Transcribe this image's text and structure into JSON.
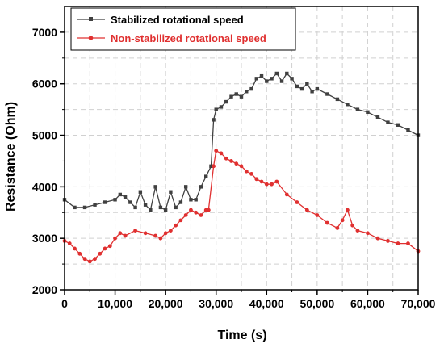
{
  "chart_data": {
    "type": "line",
    "xlabel": "Time (s)",
    "ylabel": "Resistance (Ohm)",
    "xlim": [
      0,
      70000
    ],
    "ylim": [
      2000,
      7500
    ],
    "x_ticks": [
      0,
      10000,
      20000,
      30000,
      40000,
      50000,
      60000,
      70000
    ],
    "x_tick_labels": [
      "0",
      "10,000",
      "20,000",
      "30,000",
      "40,000",
      "50,000",
      "60,000",
      "70,000"
    ],
    "y_ticks": [
      2000,
      3000,
      4000,
      5000,
      6000,
      7000
    ],
    "y_tick_labels": [
      "2000",
      "3000",
      "4000",
      "5000",
      "6000",
      "7000"
    ],
    "grid": true,
    "legend_position": "top-left",
    "series": [
      {
        "name": "Stabilized rotational speed",
        "color": "#404040",
        "marker": "square",
        "x": [
          0,
          2000,
          4000,
          6000,
          8000,
          10000,
          11000,
          12000,
          13000,
          14000,
          15000,
          16000,
          17000,
          18000,
          19000,
          20000,
          21000,
          22000,
          23000,
          24000,
          25000,
          26000,
          27000,
          28000,
          29000,
          29500,
          30000,
          31000,
          32000,
          33000,
          34000,
          35000,
          36000,
          37000,
          38000,
          39000,
          40000,
          41000,
          42000,
          43000,
          44000,
          45000,
          46000,
          47000,
          48000,
          49000,
          50000,
          52000,
          54000,
          56000,
          58000,
          60000,
          62000,
          64000,
          66000,
          68000,
          70000
        ],
        "y": [
          3750,
          3600,
          3600,
          3650,
          3700,
          3750,
          3850,
          3800,
          3700,
          3600,
          3900,
          3650,
          3550,
          4000,
          3600,
          3550,
          3900,
          3600,
          3700,
          4000,
          3750,
          3750,
          4000,
          4200,
          4400,
          5300,
          5500,
          5550,
          5650,
          5750,
          5800,
          5750,
          5850,
          5900,
          6100,
          6150,
          6050,
          6100,
          6200,
          6050,
          6200,
          6100,
          5950,
          5900,
          6000,
          5850,
          5900,
          5800,
          5700,
          5600,
          5500,
          5450,
          5350,
          5250,
          5200,
          5100,
          5000
        ]
      },
      {
        "name": "Non-stabilized rotational speed",
        "color": "#e03030",
        "marker": "circle",
        "x": [
          0,
          1000,
          2000,
          3000,
          4000,
          5000,
          6000,
          7000,
          8000,
          9000,
          10000,
          11000,
          12000,
          14000,
          16000,
          18000,
          19000,
          20000,
          21000,
          22000,
          23000,
          24000,
          25000,
          26000,
          27000,
          28000,
          28500,
          29500,
          30000,
          31000,
          32000,
          33000,
          34000,
          35000,
          36000,
          37000,
          38000,
          39000,
          40000,
          41000,
          42000,
          44000,
          46000,
          48000,
          50000,
          52000,
          54000,
          55000,
          56000,
          57000,
          58000,
          60000,
          62000,
          64000,
          66000,
          68000,
          70000
        ],
        "y": [
          2950,
          2900,
          2800,
          2700,
          2600,
          2550,
          2600,
          2700,
          2800,
          2850,
          3000,
          3100,
          3050,
          3150,
          3100,
          3050,
          3000,
          3100,
          3150,
          3250,
          3350,
          3450,
          3550,
          3500,
          3450,
          3550,
          3550,
          4400,
          4700,
          4650,
          4550,
          4500,
          4450,
          4400,
          4300,
          4250,
          4150,
          4100,
          4050,
          4050,
          4100,
          3850,
          3700,
          3550,
          3450,
          3300,
          3200,
          3350,
          3550,
          3250,
          3150,
          3100,
          3000,
          2950,
          2900,
          2900,
          2750
        ]
      }
    ]
  }
}
